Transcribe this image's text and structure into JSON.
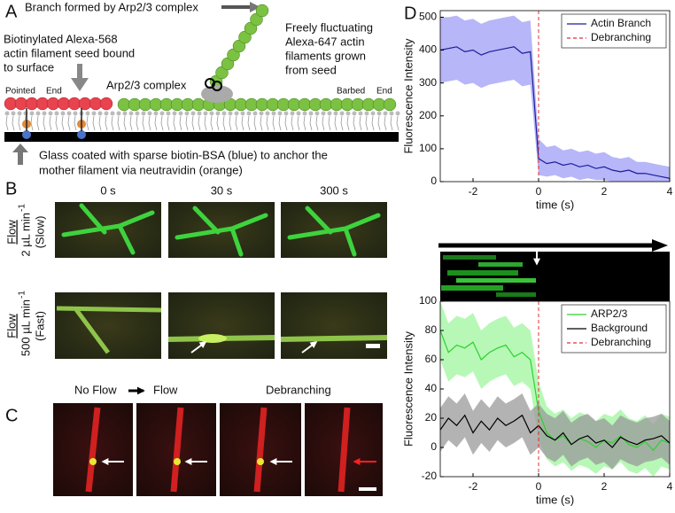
{
  "panel_a": {
    "label": "A",
    "branch_note": "Branch formed by Arp2/3 complex",
    "fluct_note": [
      "Freely fluctuating",
      "Alexa-647 actin",
      "filaments grown",
      "from seed"
    ],
    "seed_note": [
      "Biotinylated Alexa-568",
      "actin filament seed bound",
      "to surface"
    ],
    "arp_label": "Arp2/3 complex",
    "pointed": [
      "Pointed",
      "End"
    ],
    "barbed": [
      "Barbed",
      "End"
    ],
    "glass_note": [
      "Glass coated with sparse biotin-BSA (blue) to anchor the",
      "mother filament via neutravidin (orange)"
    ]
  },
  "panel_b": {
    "label": "B",
    "times": [
      "0 s",
      "30 s",
      "300 s"
    ],
    "rows": [
      {
        "flow": "Flow",
        "rate": "2 µL min",
        "exp": "-1",
        "speed": "(Slow)"
      },
      {
        "flow": "Flow",
        "rate": "500 µL min",
        "exp": "-1",
        "speed": "(Fast)"
      }
    ]
  },
  "panel_c": {
    "label": "C",
    "no_flow": "No Flow",
    "flow": "Flow",
    "debranching": "Debranching"
  },
  "panel_d": {
    "label": "D"
  },
  "chart_data": [
    {
      "type": "line",
      "ylabel": "Fluorescence Intensity",
      "xlabel": "time (s)",
      "x": [
        -3,
        -2.75,
        -2.5,
        -2.25,
        -2,
        -1.75,
        -1.5,
        -1.25,
        -1,
        -0.75,
        -0.5,
        -0.25,
        0,
        0.25,
        0.5,
        0.75,
        1,
        1.25,
        1.5,
        1.75,
        2,
        2.25,
        2.5,
        2.75,
        3,
        3.25,
        3.5,
        3.75,
        4
      ],
      "xlim": [
        -3,
        4
      ],
      "xticks": [
        -2,
        0,
        2,
        4
      ],
      "ylim": [
        0,
        520
      ],
      "yticks": [
        0,
        100,
        200,
        300,
        400,
        500
      ],
      "series": [
        {
          "name": "Actin Branch",
          "color": "#1c1c9c",
          "band_color": "#9d9df5",
          "values": [
            400,
            405,
            410,
            395,
            400,
            385,
            395,
            400,
            405,
            410,
            390,
            395,
            70,
            55,
            60,
            50,
            55,
            45,
            50,
            40,
            45,
            35,
            30,
            35,
            25,
            25,
            20,
            15,
            10
          ],
          "upper": [
            500,
            500,
            505,
            490,
            495,
            480,
            490,
            495,
            500,
            505,
            485,
            490,
            130,
            105,
            110,
            95,
            100,
            90,
            95,
            85,
            90,
            75,
            70,
            75,
            60,
            60,
            55,
            50,
            45
          ],
          "lower": [
            300,
            305,
            310,
            295,
            300,
            285,
            295,
            300,
            305,
            310,
            290,
            295,
            20,
            15,
            20,
            10,
            15,
            5,
            10,
            5,
            5,
            0,
            0,
            0,
            0,
            0,
            0,
            0,
            0
          ]
        }
      ],
      "vlines": [
        {
          "name": "Debranching",
          "color": "#e03030",
          "x": 0
        }
      ],
      "legend": "upper right"
    },
    {
      "type": "line",
      "ylabel": "Fluorescence Intensity",
      "xlabel": "time (s)",
      "x": [
        -3,
        -2.75,
        -2.5,
        -2.25,
        -2,
        -1.75,
        -1.5,
        -1.25,
        -1,
        -0.75,
        -0.5,
        -0.25,
        0,
        0.25,
        0.5,
        0.75,
        1,
        1.25,
        1.5,
        1.75,
        2,
        2.25,
        2.5,
        2.75,
        3,
        3.25,
        3.5,
        3.75,
        4
      ],
      "xlim": [
        -3,
        4
      ],
      "xticks": [
        -2,
        0,
        2,
        4
      ],
      "ylim": [
        -20,
        100
      ],
      "yticks": [
        -20,
        0,
        20,
        40,
        60,
        80,
        100
      ],
      "series": [
        {
          "name": "ARP2/3",
          "color": "#2fd02f",
          "band_color": "#9ff59f",
          "values": [
            80,
            65,
            70,
            68,
            72,
            60,
            65,
            68,
            70,
            62,
            65,
            60,
            25,
            10,
            5,
            8,
            2,
            6,
            4,
            0,
            5,
            3,
            8,
            2,
            0,
            4,
            -2,
            5,
            3
          ],
          "upper": [
            100,
            85,
            90,
            88,
            92,
            80,
            85,
            88,
            90,
            82,
            85,
            80,
            45,
            28,
            23,
            26,
            20,
            24,
            22,
            18,
            23,
            21,
            26,
            20,
            18,
            22,
            16,
            23,
            21
          ],
          "lower": [
            60,
            45,
            50,
            48,
            52,
            40,
            45,
            48,
            50,
            42,
            45,
            40,
            5,
            -8,
            -13,
            -10,
            -16,
            -12,
            -14,
            -18,
            -13,
            -15,
            -10,
            -16,
            -18,
            -14,
            -20,
            -13,
            -15
          ]
        },
        {
          "name": "Background",
          "color": "#000000",
          "band_color": "#9a9a9a",
          "values": [
            12,
            20,
            15,
            22,
            10,
            18,
            12,
            20,
            15,
            18,
            22,
            10,
            15,
            8,
            5,
            10,
            2,
            6,
            8,
            3,
            5,
            0,
            7,
            4,
            2,
            5,
            6,
            8,
            3
          ],
          "upper": [
            27,
            35,
            30,
            37,
            25,
            33,
            27,
            35,
            30,
            33,
            37,
            25,
            30,
            23,
            20,
            25,
            17,
            21,
            23,
            18,
            20,
            15,
            22,
            19,
            17,
            20,
            21,
            23,
            18
          ],
          "lower": [
            -3,
            5,
            0,
            7,
            -5,
            3,
            -3,
            5,
            0,
            3,
            7,
            -5,
            0,
            -7,
            -10,
            -5,
            -13,
            -9,
            -7,
            -12,
            -10,
            -15,
            -8,
            -11,
            -13,
            -10,
            -9,
            -7,
            -12
          ]
        }
      ],
      "vlines": [
        {
          "name": "Debranching",
          "color": "#e03030",
          "x": 0
        }
      ],
      "legend": "upper right"
    }
  ]
}
